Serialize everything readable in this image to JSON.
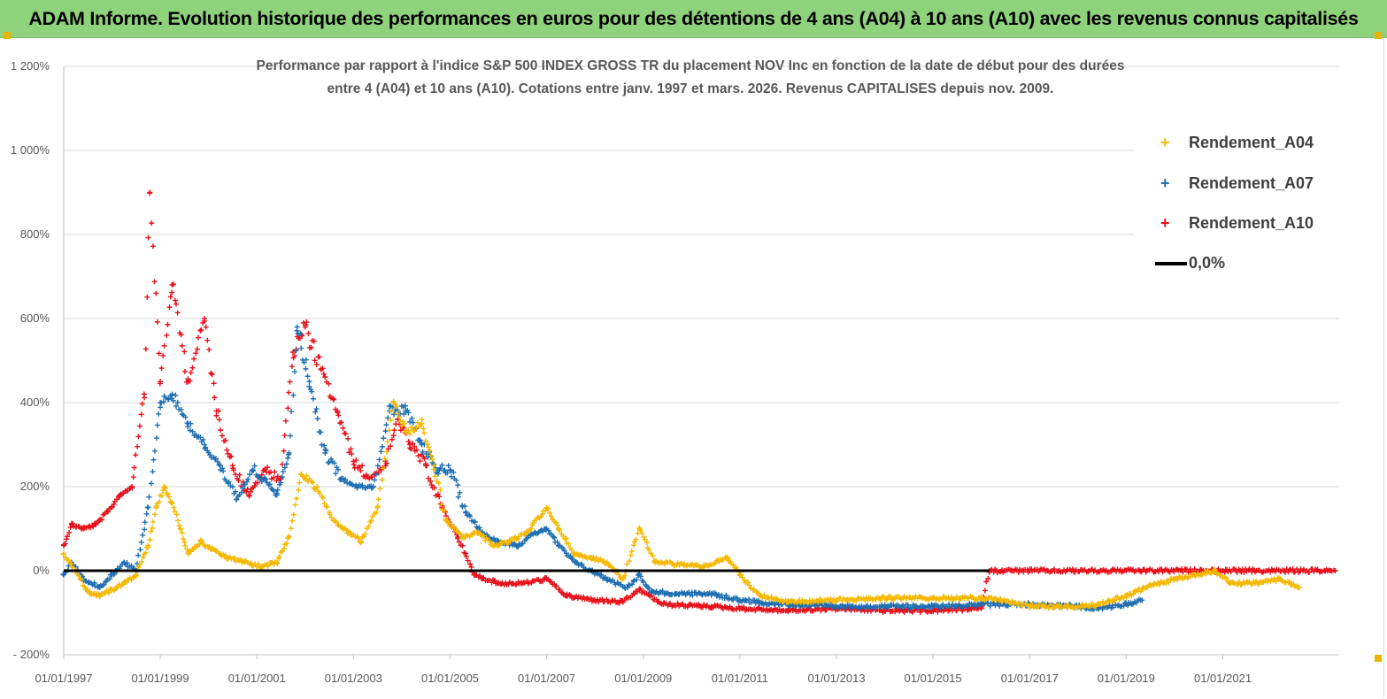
{
  "banner": {
    "title": "ADAM Informe. Evolution historique des performances en euros pour des détentions de 4 ans (A04) à 10 ans (A10) avec les revenus connus capitalisés"
  },
  "colors": {
    "banner_bg": "#8fd27c",
    "a04": "#f5b800",
    "a07": "#1f6fb2",
    "a10": "#e8101a",
    "zero": "#000000",
    "grid": "#d9d9d9"
  },
  "chart_data": {
    "type": "scatter",
    "title_line1": "Performance par rapport à l'indice S&P 500 INDEX GROSS TR  du placement NOV Inc en fonction de la date de début pour des durées",
    "title_line2": "entre 4 (A04) et 10 ans (A10).  Cotations entre janv. 1997 et mars. 2026. Revenus CAPITALISES depuis nov. 2009.",
    "xlabel": "",
    "ylabel": "",
    "ylim": [
      -200,
      1200
    ],
    "xlim": [
      "1997-01-01",
      "2023-05-31"
    ],
    "y_ticks": [
      "- 200%",
      "0%",
      "200%",
      "400%",
      "600%",
      "800%",
      "1 000%",
      "1 200%"
    ],
    "x_ticks": [
      "01/01/1997",
      "01/01/1999",
      "01/01/2001",
      "01/01/2003",
      "01/01/2005",
      "01/01/2007",
      "01/01/2009",
      "01/01/2011",
      "01/01/2013",
      "01/01/2015",
      "01/01/2017",
      "01/01/2019",
      "01/01/2021"
    ],
    "grid": true,
    "legend_position": "top-right",
    "series": [
      {
        "name": "Rendement_A04",
        "marker": "+",
        "points": [
          [
            "1997-01-01",
            40
          ],
          [
            "1997-04-01",
            0
          ],
          [
            "1997-07-01",
            -50
          ],
          [
            "1997-10-01",
            -60
          ],
          [
            "1998-01-01",
            -45
          ],
          [
            "1998-04-01",
            -30
          ],
          [
            "1998-07-01",
            -10
          ],
          [
            "1998-10-01",
            60
          ],
          [
            "1998-12-01",
            150
          ],
          [
            "1999-02-01",
            200
          ],
          [
            "1999-04-01",
            160
          ],
          [
            "1999-06-01",
            100
          ],
          [
            "1999-08-01",
            40
          ],
          [
            "1999-11-01",
            70
          ],
          [
            "2000-02-01",
            50
          ],
          [
            "2000-06-01",
            30
          ],
          [
            "2000-10-01",
            20
          ],
          [
            "2001-02-01",
            10
          ],
          [
            "2001-06-01",
            20
          ],
          [
            "2001-09-01",
            80
          ],
          [
            "2001-12-01",
            230
          ],
          [
            "2002-04-01",
            200
          ],
          [
            "2002-08-01",
            120
          ],
          [
            "2002-12-01",
            90
          ],
          [
            "2003-03-01",
            70
          ],
          [
            "2003-07-01",
            150
          ],
          [
            "2003-11-01",
            400
          ],
          [
            "2004-02-01",
            330
          ],
          [
            "2004-06-01",
            350
          ],
          [
            "2004-09-01",
            250
          ],
          [
            "2004-12-01",
            120
          ],
          [
            "2005-04-01",
            80
          ],
          [
            "2005-08-01",
            90
          ],
          [
            "2005-12-01",
            60
          ],
          [
            "2006-04-01",
            70
          ],
          [
            "2006-08-01",
            90
          ],
          [
            "2007-01-01",
            150
          ],
          [
            "2007-04-01",
            100
          ],
          [
            "2007-08-01",
            40
          ],
          [
            "2007-12-01",
            30
          ],
          [
            "2008-04-01",
            20
          ],
          [
            "2008-08-01",
            -20
          ],
          [
            "2008-12-01",
            100
          ],
          [
            "2009-04-01",
            20
          ],
          [
            "2009-10-01",
            15
          ],
          [
            "2010-04-01",
            10
          ],
          [
            "2010-10-01",
            30
          ],
          [
            "2011-01-01",
            -10
          ],
          [
            "2011-06-01",
            -60
          ],
          [
            "2012-01-01",
            -75
          ],
          [
            "2013-01-01",
            -70
          ],
          [
            "2014-01-01",
            -65
          ],
          [
            "2015-01-01",
            -65
          ],
          [
            "2016-01-01",
            -65
          ],
          [
            "2016-06-01",
            -70
          ],
          [
            "2017-01-01",
            -85
          ],
          [
            "2018-01-01",
            -85
          ],
          [
            "2018-06-01",
            -80
          ],
          [
            "2019-01-01",
            -60
          ],
          [
            "2019-06-01",
            -40
          ],
          [
            "2020-01-01",
            -20
          ],
          [
            "2020-06-01",
            -10
          ],
          [
            "2020-11-01",
            0
          ],
          [
            "2021-03-01",
            -30
          ],
          [
            "2021-09-01",
            -30
          ],
          [
            "2022-03-01",
            -20
          ],
          [
            "2022-08-01",
            -40
          ]
        ]
      },
      {
        "name": "Rendement_A07",
        "marker": "+",
        "points": [
          [
            "1997-01-01",
            -10
          ],
          [
            "1997-03-01",
            20
          ],
          [
            "1997-06-01",
            -20
          ],
          [
            "1997-10-01",
            -40
          ],
          [
            "1998-01-01",
            -10
          ],
          [
            "1998-04-01",
            20
          ],
          [
            "1998-07-01",
            0
          ],
          [
            "1998-10-01",
            150
          ],
          [
            "1999-01-01",
            400
          ],
          [
            "1999-04-01",
            420
          ],
          [
            "1999-08-01",
            350
          ],
          [
            "1999-12-01",
            300
          ],
          [
            "2000-04-01",
            240
          ],
          [
            "2000-08-01",
            170
          ],
          [
            "2000-12-01",
            240
          ],
          [
            "2001-03-01",
            220
          ],
          [
            "2001-06-01",
            180
          ],
          [
            "2001-09-01",
            280
          ],
          [
            "2001-11-01",
            580
          ],
          [
            "2002-02-01",
            450
          ],
          [
            "2002-06-01",
            280
          ],
          [
            "2002-10-01",
            220
          ],
          [
            "2003-02-01",
            200
          ],
          [
            "2003-06-01",
            200
          ],
          [
            "2003-10-01",
            380
          ],
          [
            "2004-02-01",
            380
          ],
          [
            "2004-06-01",
            300
          ],
          [
            "2004-10-01",
            240
          ],
          [
            "2005-01-01",
            240
          ],
          [
            "2005-05-01",
            140
          ],
          [
            "2005-09-01",
            90
          ],
          [
            "2006-01-01",
            70
          ],
          [
            "2006-06-01",
            60
          ],
          [
            "2006-10-01",
            90
          ],
          [
            "2007-01-01",
            100
          ],
          [
            "2007-04-01",
            60
          ],
          [
            "2007-08-01",
            20
          ],
          [
            "2007-12-01",
            0
          ],
          [
            "2008-04-01",
            -20
          ],
          [
            "2008-09-01",
            -40
          ],
          [
            "2008-12-01",
            -10
          ],
          [
            "2009-03-01",
            -50
          ],
          [
            "2009-09-01",
            -55
          ],
          [
            "2010-06-01",
            -55
          ],
          [
            "2011-01-01",
            -70
          ],
          [
            "2011-06-01",
            -75
          ],
          [
            "2012-01-01",
            -80
          ],
          [
            "2013-01-01",
            -85
          ],
          [
            "2014-01-01",
            -85
          ],
          [
            "2015-01-01",
            -85
          ],
          [
            "2016-01-01",
            -80
          ],
          [
            "2017-01-01",
            -80
          ],
          [
            "2018-01-01",
            -85
          ],
          [
            "2018-06-01",
            -90
          ],
          [
            "2019-01-01",
            -80
          ],
          [
            "2019-05-01",
            -70
          ]
        ]
      },
      {
        "name": "Rendement_A10",
        "marker": "+",
        "points": [
          [
            "1997-01-01",
            60
          ],
          [
            "1997-03-01",
            110
          ],
          [
            "1997-06-01",
            100
          ],
          [
            "1997-09-01",
            110
          ],
          [
            "1997-12-01",
            140
          ],
          [
            "1998-03-01",
            180
          ],
          [
            "1998-06-01",
            200
          ],
          [
            "1998-09-01",
            420
          ],
          [
            "1998-10-15",
            900
          ],
          [
            "1999-01-01",
            450
          ],
          [
            "1999-04-01",
            680
          ],
          [
            "1999-08-01",
            450
          ],
          [
            "1999-12-01",
            600
          ],
          [
            "2000-03-01",
            380
          ],
          [
            "2000-07-01",
            250
          ],
          [
            "2000-11-01",
            180
          ],
          [
            "2001-03-01",
            240
          ],
          [
            "2001-07-01",
            220
          ],
          [
            "2001-10-01",
            520
          ],
          [
            "2002-01-01",
            580
          ],
          [
            "2002-05-01",
            480
          ],
          [
            "2002-09-01",
            380
          ],
          [
            "2003-01-01",
            260
          ],
          [
            "2003-05-01",
            220
          ],
          [
            "2003-09-01",
            250
          ],
          [
            "2003-12-01",
            360
          ],
          [
            "2004-03-01",
            300
          ],
          [
            "2004-07-01",
            250
          ],
          [
            "2004-11-01",
            150
          ],
          [
            "2005-03-01",
            80
          ],
          [
            "2005-07-01",
            -10
          ],
          [
            "2006-01-01",
            -30
          ],
          [
            "2006-07-01",
            -30
          ],
          [
            "2007-01-01",
            -20
          ],
          [
            "2007-06-01",
            -60
          ],
          [
            "2008-01-01",
            -70
          ],
          [
            "2008-08-01",
            -75
          ],
          [
            "2008-12-01",
            -45
          ],
          [
            "2009-06-01",
            -80
          ],
          [
            "2010-06-01",
            -85
          ],
          [
            "2011-01-01",
            -90
          ],
          [
            "2012-01-01",
            -95
          ],
          [
            "2013-01-01",
            -90
          ],
          [
            "2014-01-01",
            -95
          ],
          [
            "2015-01-01",
            -95
          ],
          [
            "2016-01-01",
            -90
          ],
          [
            "2016-03-01",
            0
          ],
          [
            "2017-01-01",
            0
          ],
          [
            "2019-01-01",
            0
          ],
          [
            "2021-01-01",
            0
          ],
          [
            "2023-05-01",
            0
          ]
        ]
      },
      {
        "name": "0,0%",
        "marker": "line",
        "points": [
          [
            "1997-01-01",
            0
          ],
          [
            "2016-03-01",
            0
          ]
        ]
      }
    ]
  }
}
